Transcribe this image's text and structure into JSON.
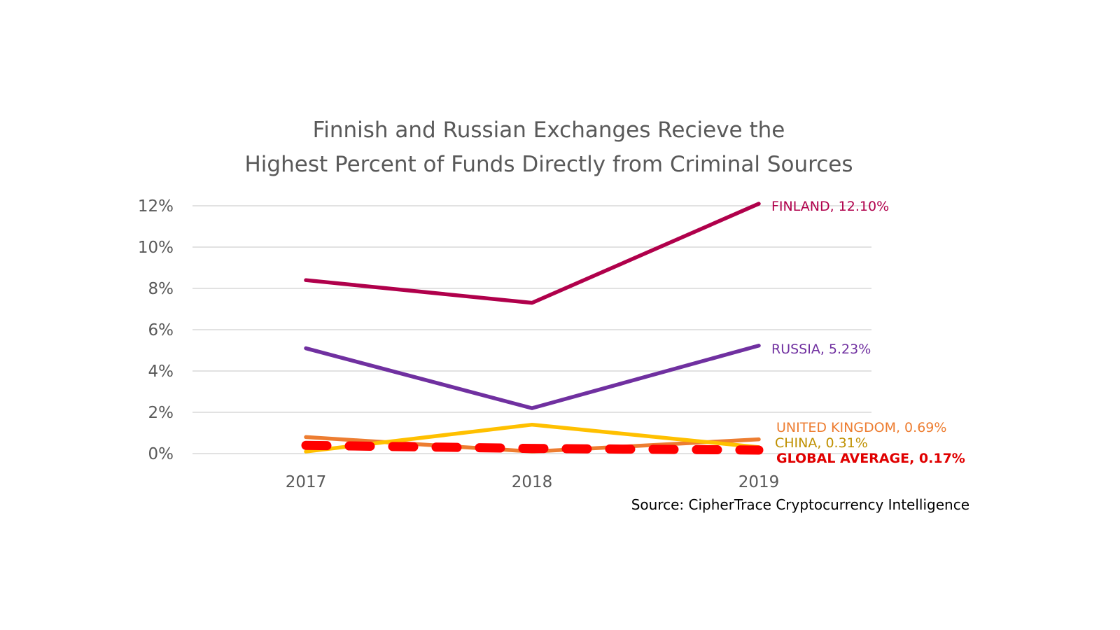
{
  "chart_data": {
    "type": "line",
    "title_lines": [
      "Finnish and Russian Exchanges Recieve the",
      "Highest Percent of Funds Directly from Criminal Sources"
    ],
    "xlabel": "",
    "ylabel": "",
    "categories": [
      "2017",
      "2018",
      "2019"
    ],
    "ylim": [
      0,
      12
    ],
    "yticks": [
      0,
      2,
      4,
      6,
      8,
      10,
      12
    ],
    "ytick_labels": [
      "0%",
      "2%",
      "4%",
      "6%",
      "8%",
      "10%",
      "12%"
    ],
    "grid": true,
    "legend": "none (direct labels at line ends)",
    "series": [
      {
        "label": "FINLAND, 12.10%",
        "values": [
          8.4,
          7.3,
          12.1
        ],
        "color": "#b0004b",
        "style": "solid"
      },
      {
        "label": "RUSSIA, 5.23%",
        "values": [
          5.1,
          2.2,
          5.23
        ],
        "color": "#7030a0",
        "style": "solid"
      },
      {
        "label": "UNITED KINGDOM, 0.69%",
        "values": [
          0.8,
          0.1,
          0.69
        ],
        "color": "#ed7d31",
        "style": "solid"
      },
      {
        "label": "CHINA, 0.31%",
        "values": [
          0.1,
          1.4,
          0.31
        ],
        "color": "#ffc000",
        "label_color": "#bf9000",
        "style": "solid"
      },
      {
        "label": "GLOBAL AVERAGE, 0.17%",
        "values": [
          0.4,
          0.25,
          0.17
        ],
        "color": "#ff0000",
        "label_color": "#e00000",
        "style": "dashed",
        "label_bold": true
      }
    ],
    "source": "Source: CipherTrace Cryptocurrency Intelligence"
  }
}
